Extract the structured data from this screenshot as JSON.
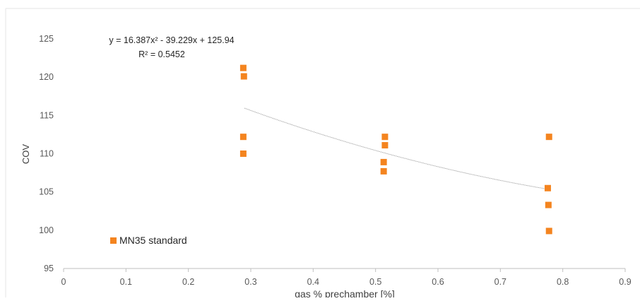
{
  "chart_data": {
    "type": "scatter",
    "title": "",
    "xlabel": "gas % prechamber  [%]",
    "ylabel": "COV",
    "xlim": [
      0,
      0.9
    ],
    "ylim": [
      95,
      125
    ],
    "x_ticks": [
      0,
      0.1,
      0.2,
      0.3,
      0.4,
      0.5,
      0.6,
      0.7,
      0.8,
      0.9
    ],
    "x_tick_labels": [
      "0",
      "0.1",
      "0.2",
      "0.3",
      "0.4",
      "0.5",
      "0.6",
      "0.7",
      "0.8",
      "0.9"
    ],
    "y_ticks": [
      95,
      100,
      105,
      110,
      115,
      120,
      125
    ],
    "y_tick_labels": [
      "95",
      "100",
      "105",
      "110",
      "115",
      "120",
      "125"
    ],
    "grid": false,
    "legend_position": "bottom-left",
    "series": [
      {
        "name": "MN35 standard",
        "color": "#f4841f",
        "marker": "square",
        "points": [
          {
            "x": 0.288,
            "y": 121.2
          },
          {
            "x": 0.289,
            "y": 120.1
          },
          {
            "x": 0.288,
            "y": 112.2
          },
          {
            "x": 0.288,
            "y": 110.0
          },
          {
            "x": 0.515,
            "y": 112.2
          },
          {
            "x": 0.515,
            "y": 111.1
          },
          {
            "x": 0.513,
            "y": 108.9
          },
          {
            "x": 0.513,
            "y": 107.7
          },
          {
            "x": 0.778,
            "y": 112.2
          },
          {
            "x": 0.776,
            "y": 105.5
          },
          {
            "x": 0.777,
            "y": 103.3
          },
          {
            "x": 0.778,
            "y": 99.9
          }
        ]
      }
    ],
    "trendline": {
      "type": "polynomial",
      "order": 2,
      "coefficients": [
        16.387,
        -39.229,
        125.94
      ],
      "x_range": [
        0.29,
        0.775
      ],
      "color": "#9a9a9a",
      "equation_label": "y = 16.387x² - 39.229x + 125.94",
      "r2_label": "R² = 0.5452"
    }
  }
}
